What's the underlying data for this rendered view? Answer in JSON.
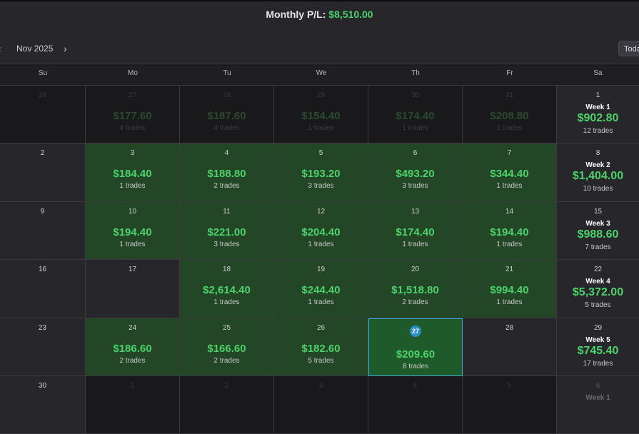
{
  "header": {
    "monthly_label": "Monthly P/L:",
    "monthly_value": "$8,510.00"
  },
  "nav": {
    "prev_icon": "chevron-left-icon",
    "prev_glyph": "‹",
    "month": "Nov 2025",
    "next_icon": "chevron-right-icon",
    "next_glyph": "›",
    "today_label": "Today"
  },
  "weekdays": [
    "Su",
    "Mo",
    "Tu",
    "We",
    "Th",
    "Fr",
    "Sa"
  ],
  "weeks": [
    {
      "sun": {
        "day": "26",
        "dim": true
      },
      "days": [
        {
          "day": "27",
          "pnl": "$177.60",
          "trades": "4 trades",
          "dim": true
        },
        {
          "day": "28",
          "pnl": "$187.60",
          "trades": "4 trades",
          "dim": true
        },
        {
          "day": "29",
          "pnl": "$154.40",
          "trades": "1 trades",
          "dim": true
        },
        {
          "day": "30",
          "pnl": "$174.40",
          "trades": "1 trades",
          "dim": true
        },
        {
          "day": "31",
          "pnl": "$208.80",
          "trades": "2 trades",
          "dim": true
        }
      ],
      "sat": {
        "day": "1",
        "week_label": "Week 1",
        "pnl": "$902.80",
        "trades": "12 trades"
      }
    },
    {
      "sun": {
        "day": "2"
      },
      "days": [
        {
          "day": "3",
          "pnl": "$184.40",
          "trades": "1 trades"
        },
        {
          "day": "4",
          "pnl": "$188.80",
          "trades": "2 trades"
        },
        {
          "day": "5",
          "pnl": "$193.20",
          "trades": "3 trades"
        },
        {
          "day": "6",
          "pnl": "$493.20",
          "trades": "3 trades"
        },
        {
          "day": "7",
          "pnl": "$344.40",
          "trades": "1 trades"
        }
      ],
      "sat": {
        "day": "8",
        "week_label": "Week 2",
        "pnl": "$1,404.00",
        "trades": "10 trades"
      }
    },
    {
      "sun": {
        "day": "9"
      },
      "days": [
        {
          "day": "10",
          "pnl": "$194.40",
          "trades": "1 trades"
        },
        {
          "day": "11",
          "pnl": "$221.00",
          "trades": "3 trades"
        },
        {
          "day": "12",
          "pnl": "$204.40",
          "trades": "1 trades"
        },
        {
          "day": "13",
          "pnl": "$174.40",
          "trades": "1 trades"
        },
        {
          "day": "14",
          "pnl": "$194.40",
          "trades": "1 trades"
        }
      ],
      "sat": {
        "day": "15",
        "week_label": "Week 3",
        "pnl": "$988.60",
        "trades": "7 trades"
      }
    },
    {
      "sun": {
        "day": "16"
      },
      "days": [
        {
          "day": "17",
          "empty": true
        },
        {
          "day": "18",
          "pnl": "$2,614.40",
          "trades": "1 trades"
        },
        {
          "day": "19",
          "pnl": "$244.40",
          "trades": "1 trades"
        },
        {
          "day": "20",
          "pnl": "$1,518.80",
          "trades": "2 trades"
        },
        {
          "day": "21",
          "pnl": "$994.40",
          "trades": "1 trades"
        }
      ],
      "sat": {
        "day": "22",
        "week_label": "Week 4",
        "pnl": "$5,372.00",
        "trades": "5 trades"
      }
    },
    {
      "sun": {
        "day": "23"
      },
      "days": [
        {
          "day": "24",
          "pnl": "$186.60",
          "trades": "2 trades"
        },
        {
          "day": "25",
          "pnl": "$166.60",
          "trades": "2 trades"
        },
        {
          "day": "26",
          "pnl": "$182.60",
          "trades": "5 trades"
        },
        {
          "day": "27",
          "pnl": "$209.60",
          "trades": "8 trades",
          "selected": true
        },
        {
          "day": "28",
          "empty": true
        }
      ],
      "sat": {
        "day": "29",
        "week_label": "Week 5",
        "pnl": "$745.40",
        "trades": "17 trades"
      }
    },
    {
      "sun": {
        "day": "30"
      },
      "days": [
        {
          "day": "1",
          "dim": true,
          "empty": true
        },
        {
          "day": "2",
          "dim": true,
          "empty": true
        },
        {
          "day": "3",
          "dim": true,
          "empty": true
        },
        {
          "day": "4",
          "dim": true,
          "empty": true
        },
        {
          "day": "5",
          "dim": true,
          "empty": true
        }
      ],
      "sat": {
        "day": "6",
        "week_label": "Week 1",
        "dim": true
      }
    }
  ],
  "colors": {
    "profit": "#4cd26a",
    "profit_cell": "#234627",
    "selected_border": "#38b0d8",
    "today_badge": "#2a8fc8"
  }
}
